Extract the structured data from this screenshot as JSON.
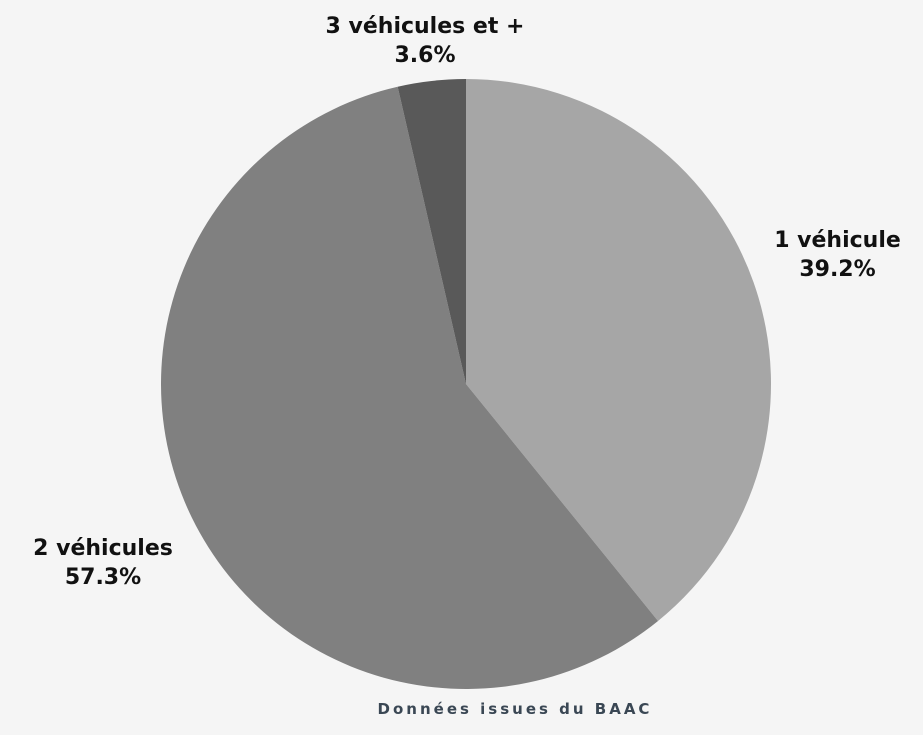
{
  "chart_data": {
    "type": "pie",
    "categories": [
      "1 véhicule",
      "2 véhicules",
      "3 véhicules et +"
    ],
    "values": [
      39.2,
      57.3,
      3.6
    ],
    "value_labels": [
      "39.2%",
      "57.3%",
      "3.6%"
    ],
    "colors": [
      "#a6a6a6",
      "#808080",
      "#595959"
    ],
    "start_angle": "12 o'clock",
    "direction": "clockwise",
    "legend": "none"
  },
  "source_note": "Données issues du BAAC"
}
